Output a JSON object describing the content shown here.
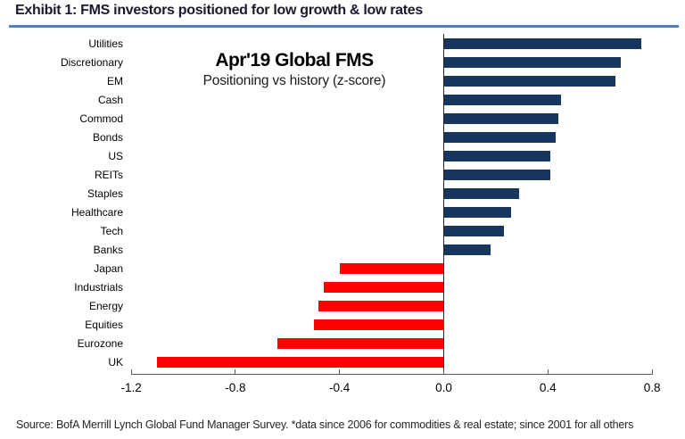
{
  "exhibit": {
    "title": "Exhibit 1: FMS investors positioned for low growth & low rates"
  },
  "chart_data": {
    "type": "bar",
    "orientation": "horizontal",
    "title": "Apr'19 Global FMS",
    "subtitle": "Positioning vs history (z-score)",
    "categories": [
      "Utilities",
      "Discretionary",
      "EM",
      "Cash",
      "Commod",
      "Bonds",
      "US",
      "REITs",
      "Staples",
      "Healthcare",
      "Tech",
      "Banks",
      "Japan",
      "Industrials",
      "Energy",
      "Equities",
      "Eurozone",
      "UK"
    ],
    "values": [
      0.76,
      0.68,
      0.66,
      0.45,
      0.44,
      0.43,
      0.41,
      0.41,
      0.29,
      0.26,
      0.23,
      0.18,
      -0.4,
      -0.46,
      -0.48,
      -0.5,
      -0.64,
      -1.1
    ],
    "xlim": [
      -1.2,
      0.8
    ],
    "xticks": [
      -1.2,
      -0.8,
      -0.4,
      0.0,
      0.4,
      0.8
    ],
    "grid": false,
    "legend": "none",
    "colors": {
      "positive": "#17365d",
      "negative": "#ff0000"
    }
  },
  "footer": {
    "source": "Source:  BofA Merrill Lynch Global Fund Manager Survey. *data since 2006 for commodities & real estate; since 2001 for all others"
  }
}
